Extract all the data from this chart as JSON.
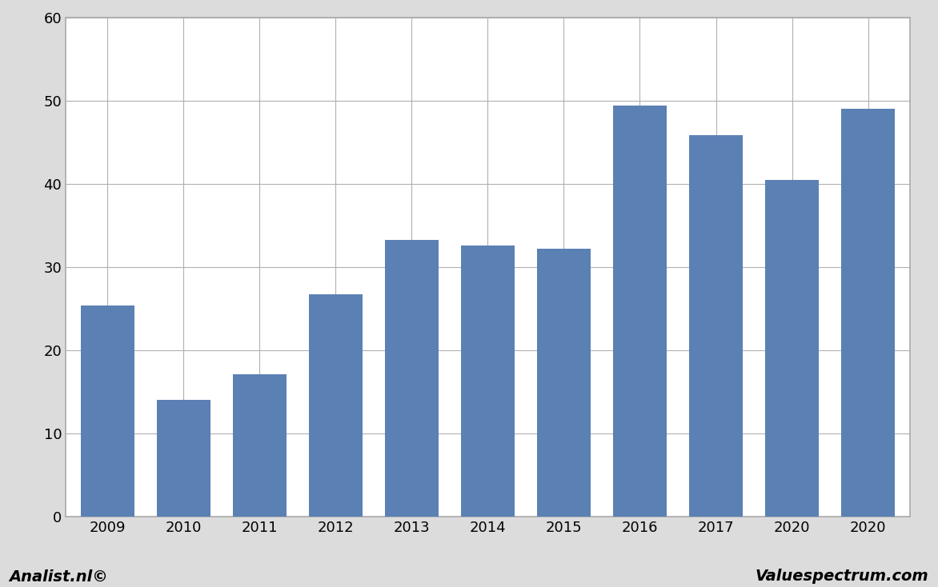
{
  "categories": [
    "2009",
    "2010",
    "2011",
    "2012",
    "2013",
    "2014",
    "2015",
    "2016",
    "2017",
    "2020",
    "2020"
  ],
  "values": [
    25.4,
    14.0,
    17.1,
    26.7,
    33.3,
    32.6,
    32.2,
    49.4,
    45.9,
    40.5,
    49.0
  ],
  "bar_color": "#5b80b4",
  "ylim": [
    0,
    60
  ],
  "yticks": [
    0,
    10,
    20,
    30,
    40,
    50,
    60
  ],
  "background_color": "#dcdcdc",
  "plot_background": "#ffffff",
  "grid_color": "#b0b0b0",
  "footer_left": "Analist.nl©",
  "footer_right": "Valuespectrum.com",
  "footer_fontsize": 14,
  "bar_width": 0.7
}
